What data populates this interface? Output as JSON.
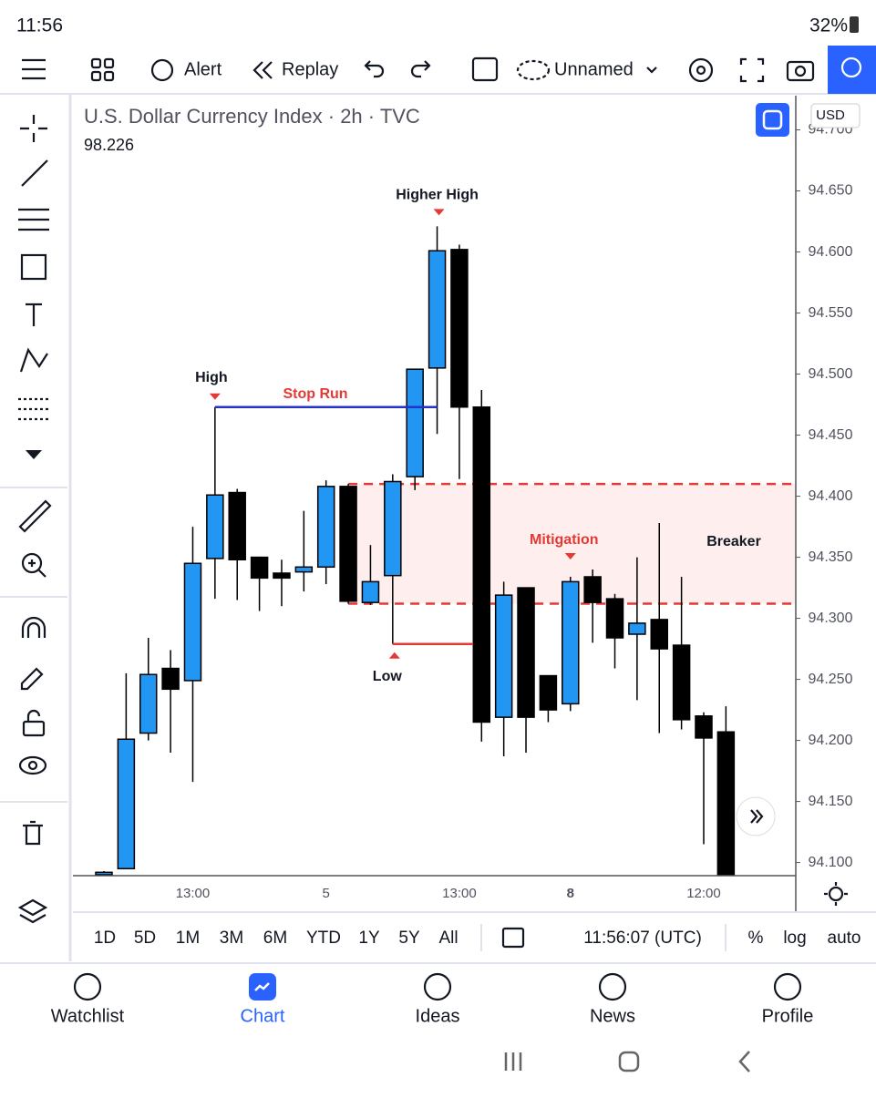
{
  "status_bar": {
    "time": "11:56",
    "battery": "32%"
  },
  "toolbar": {
    "alert": "Alert",
    "replay": "Replay",
    "layout": "Unnamed"
  },
  "chart": {
    "type": "candlestick",
    "title": "U.S. Dollar Currency Index · 2h · TVC",
    "last_value": 98.226,
    "currency": "USD",
    "categories": [
      null,
      null,
      null,
      null,
      "13:00",
      null,
      null,
      null,
      null,
      null,
      "5",
      null,
      null,
      null,
      null,
      null,
      "13:00",
      null,
      null,
      null,
      null,
      "8",
      null,
      null,
      null,
      null,
      null,
      "12:00",
      null
    ],
    "open": [
      94.09,
      94.095,
      94.206,
      94.259,
      94.249,
      94.349,
      94.403,
      94.35,
      94.337,
      94.338,
      94.342,
      94.408,
      94.313,
      94.335,
      94.416,
      94.505,
      94.602,
      94.473,
      94.219,
      94.325,
      94.253,
      94.23,
      94.334,
      94.316,
      94.287,
      94.299,
      94.278,
      94.22,
      94.207
    ],
    "high": [
      94.093,
      94.255,
      94.284,
      94.274,
      94.375,
      94.473,
      94.406,
      94.35,
      94.348,
      94.388,
      94.413,
      94.41,
      94.36,
      94.418,
      94.504,
      94.621,
      94.606,
      94.487,
      94.33,
      94.325,
      94.253,
      94.334,
      94.34,
      94.32,
      94.35,
      94.378,
      94.334,
      94.223,
      94.228
    ],
    "low": [
      94.09,
      94.095,
      94.2,
      94.19,
      94.166,
      94.316,
      94.315,
      94.306,
      94.31,
      94.322,
      94.328,
      94.312,
      94.311,
      94.279,
      94.405,
      94.451,
      94.414,
      94.199,
      94.187,
      94.19,
      94.215,
      94.224,
      94.28,
      94.259,
      94.233,
      94.206,
      94.209,
      94.115,
      94.09
    ],
    "close": [
      94.092,
      94.201,
      94.254,
      94.242,
      94.345,
      94.401,
      94.348,
      94.333,
      94.333,
      94.342,
      94.408,
      94.314,
      94.33,
      94.412,
      94.504,
      94.601,
      94.473,
      94.215,
      94.319,
      94.219,
      94.225,
      94.33,
      94.313,
      94.284,
      94.296,
      94.275,
      94.217,
      94.202,
      94.09
    ],
    "up_color": "#2196f3",
    "down_color": "#000000",
    "ylim": [
      94.09,
      94.728
    ],
    "yticks": [
      {
        "value": 94.1,
        "label": "94.100"
      },
      {
        "value": 94.15,
        "label": "94.150"
      },
      {
        "value": 94.2,
        "label": "94.200"
      },
      {
        "value": 94.25,
        "label": "94.250"
      },
      {
        "value": 94.3,
        "label": "94.300"
      },
      {
        "value": 94.35,
        "label": "94.350"
      },
      {
        "value": 94.4,
        "label": "94.400"
      },
      {
        "value": 94.45,
        "label": "94.450"
      },
      {
        "value": 94.5,
        "label": "94.500"
      },
      {
        "value": 94.55,
        "label": "94.550"
      },
      {
        "value": 94.6,
        "label": "94.600"
      },
      {
        "value": 94.65,
        "label": "94.650"
      },
      {
        "value": 94.7,
        "label": "94.700"
      }
    ],
    "annotations": [
      "High",
      "Stop Run",
      "Higher High",
      "Low",
      "Mitigation",
      "Breaker"
    ]
  },
  "ranges": [
    "1D",
    "5D",
    "1M",
    "3M",
    "6M",
    "YTD",
    "1Y",
    "5Y",
    "All"
  ],
  "clock": "11:56:07 (UTC)",
  "scale_options": [
    "%",
    "log",
    "auto"
  ],
  "nav": [
    "Watchlist",
    "Chart",
    "Ideas",
    "News",
    "Profile"
  ]
}
